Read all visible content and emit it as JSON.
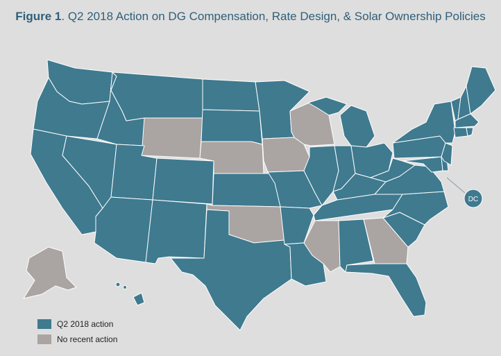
{
  "title": {
    "prefix": "Figure 1",
    "text": ". Q2 2018 Action on DG Compensation, Rate Design, & Solar Ownership Policies"
  },
  "colors": {
    "action": "#3f7a8f",
    "no_action": "#aaa5a2",
    "background": "#dedede",
    "title": "#2f5f7a"
  },
  "dc_label": "DC",
  "legend": [
    {
      "label": "Q2 2018 action",
      "color": "#3f7a8f"
    },
    {
      "label": "No recent action",
      "color": "#aaa5a2"
    }
  ],
  "states_action": [
    "WA",
    "OR",
    "CA",
    "ID",
    "NV",
    "MT",
    "UT",
    "AZ",
    "CO",
    "NM",
    "ND",
    "SD",
    "KS",
    "TX",
    "MN",
    "MO",
    "AR",
    "LA",
    "IL",
    "IN",
    "OH",
    "MI",
    "KY",
    "TN",
    "AL",
    "FL",
    "SC",
    "NC",
    "VA",
    "WV",
    "MD",
    "DE",
    "PA",
    "NJ",
    "NY",
    "VT",
    "NH",
    "ME",
    "MA",
    "CT",
    "RI",
    "HI",
    "DC"
  ],
  "states_no_action": [
    "WY",
    "NE",
    "IA",
    "OK",
    "WI",
    "MS",
    "GA",
    "AK"
  ]
}
